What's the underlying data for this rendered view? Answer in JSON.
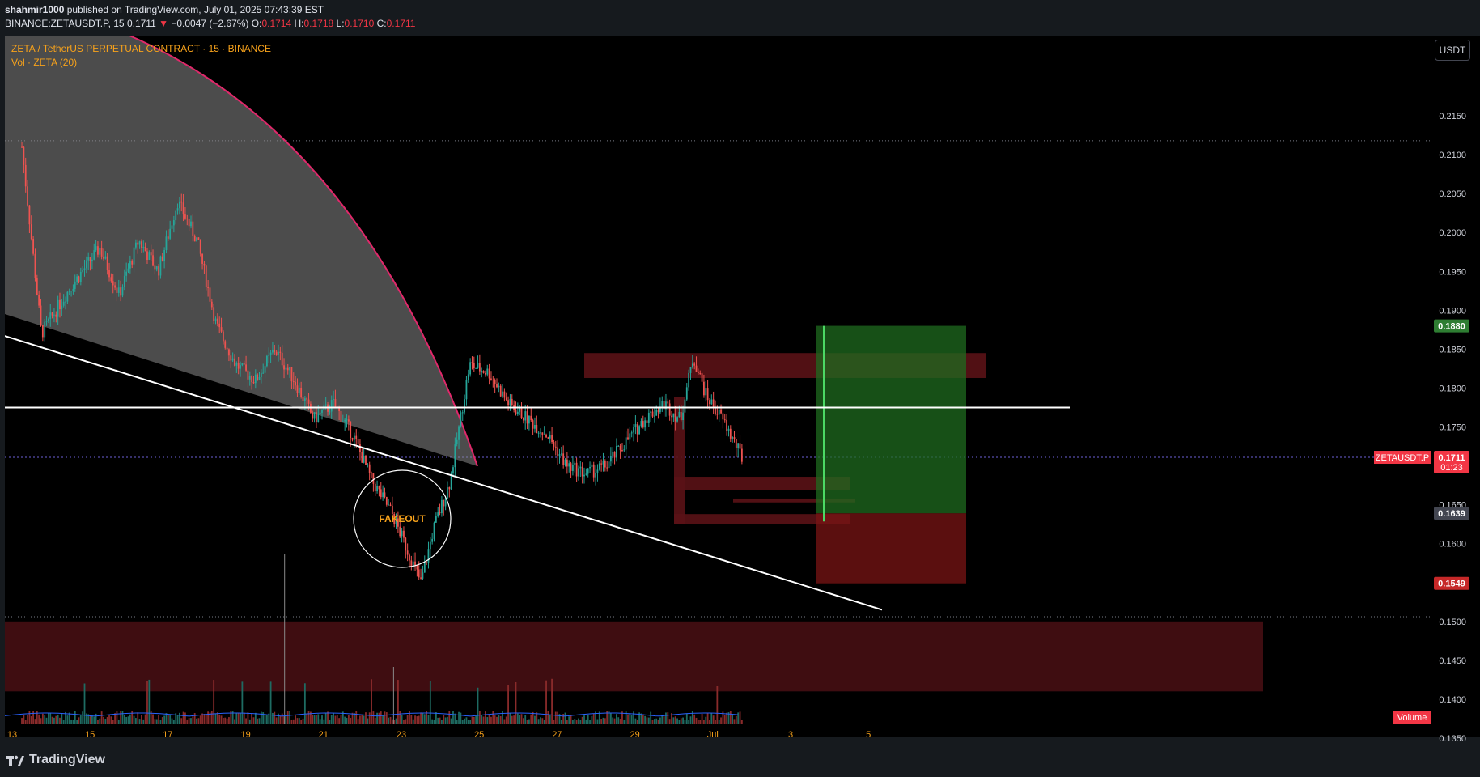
{
  "header": {
    "author": "shahmir1000",
    "published_text": " published on TradingView.com, July 01, 2025 07:43:39 EST",
    "symbol_line": "BINANCE:ZETAUSDT.P, 15",
    "last": "0.1711",
    "arrow": "▼",
    "change": "−0.0047 (−2.67%)",
    "o_label": "O:",
    "o": "0.1714",
    "h_label": "H:",
    "h": "0.1718",
    "l_label": "L:",
    "l": "0.1710",
    "c_label": "C:",
    "c": "0.1711"
  },
  "legend": {
    "title": "ZETA / TetherUS PERPETUAL CONTRACT · 15 · BINANCE",
    "vol": "Vol · ZETA (20)"
  },
  "currency_button": "USDT",
  "annotation": "FAKEOUT",
  "volume_label": "Volume",
  "branding": "TradingView",
  "colors": {
    "background": "#000000",
    "up": "#26a69a",
    "down": "#ef5350",
    "accent_orange": "#f7a21b",
    "arc": "#e0286a",
    "tp_zone": "#1f6b1f",
    "sl_zone": "#7a1414",
    "demand_zone": "#4a0f14"
  },
  "chart_data": {
    "type": "candlestick",
    "interval": "15",
    "ylim": [
      0.135,
      0.22
    ],
    "y_ticks": [
      "0.2150",
      "0.2100",
      "0.2050",
      "0.2000",
      "0.1950",
      "0.1900",
      "0.1850",
      "0.1800",
      "0.1750",
      "0.1700",
      "0.1650",
      "0.1600",
      "0.1550",
      "0.1500",
      "0.1450",
      "0.1400",
      "0.1350"
    ],
    "x_ticks": [
      "13",
      "15",
      "17",
      "19",
      "21",
      "23",
      "25",
      "27",
      "29",
      "Jul",
      "3",
      "5"
    ],
    "price_path": [
      {
        "x": "Jun 13",
        "y": 0.211
      },
      {
        "x": "Jun 13",
        "y": 0.187
      },
      {
        "x": "Jun 14",
        "y": 0.193
      },
      {
        "x": "Jun 15",
        "y": 0.198
      },
      {
        "x": "Jun 15",
        "y": 0.192
      },
      {
        "x": "Jun 16",
        "y": 0.199
      },
      {
        "x": "Jun 16",
        "y": 0.195
      },
      {
        "x": "Jun 17",
        "y": 0.204
      },
      {
        "x": "Jun 17",
        "y": 0.199
      },
      {
        "x": "Jun 18",
        "y": 0.188
      },
      {
        "x": "Jun 18",
        "y": 0.183
      },
      {
        "x": "Jun 19",
        "y": 0.181
      },
      {
        "x": "Jun 19",
        "y": 0.185
      },
      {
        "x": "Jun 20",
        "y": 0.181
      },
      {
        "x": "Jun 20",
        "y": 0.176
      },
      {
        "x": "Jun 21",
        "y": 0.178
      },
      {
        "x": "Jun 21",
        "y": 0.174
      },
      {
        "x": "Jun 22",
        "y": 0.168
      },
      {
        "x": "Jun 22",
        "y": 0.164
      },
      {
        "x": "Jun 23",
        "y": 0.159
      },
      {
        "x": "Jun 23",
        "y": 0.155
      },
      {
        "x": "Jun 23",
        "y": 0.162
      },
      {
        "x": "Jun 24",
        "y": 0.168
      },
      {
        "x": "Jun 24",
        "y": 0.183
      },
      {
        "x": "Jun 25",
        "y": 0.182
      },
      {
        "x": "Jun 25",
        "y": 0.178
      },
      {
        "x": "Jun 26",
        "y": 0.176
      },
      {
        "x": "Jun 26",
        "y": 0.174
      },
      {
        "x": "Jun 27",
        "y": 0.17
      },
      {
        "x": "Jun 27",
        "y": 0.169
      },
      {
        "x": "Jun 28",
        "y": 0.17
      },
      {
        "x": "Jun 28",
        "y": 0.173
      },
      {
        "x": "Jun 29",
        "y": 0.176
      },
      {
        "x": "Jun 29",
        "y": 0.178
      },
      {
        "x": "Jun 30",
        "y": 0.176
      },
      {
        "x": "Jun 30",
        "y": 0.184
      },
      {
        "x": "Jun 30",
        "y": 0.179
      },
      {
        "x": "Jul 1",
        "y": 0.176
      },
      {
        "x": "Jul 1",
        "y": 0.1711
      }
    ],
    "horizontal_level": 0.1775,
    "last_price_label": {
      "symbol": "ZETAUSDT.P",
      "price": "0.1711",
      "countdown": "01:23"
    },
    "position": {
      "take_profit": "0.1880",
      "entry": "0.1639",
      "stop_loss": "0.1549"
    },
    "zones": {
      "supply": [
        0.1813,
        0.1845
      ],
      "demand": [
        0.141,
        0.15
      ]
    }
  }
}
